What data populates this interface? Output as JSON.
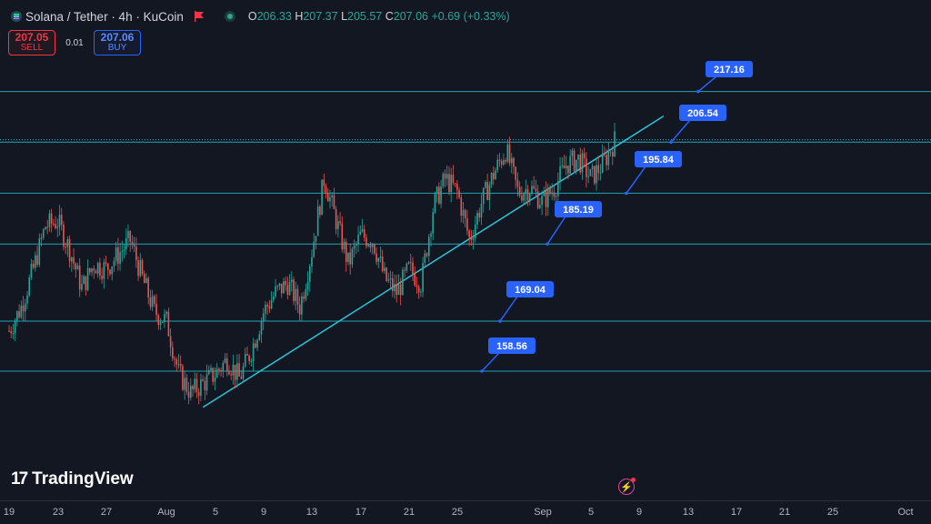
{
  "header": {
    "symbol": "Solana / Tether · 4h · KuCoin",
    "ohlc": {
      "o_label": "O",
      "o": "206.33",
      "h_label": "H",
      "h": "207.37",
      "l_label": "L",
      "l": "205.57",
      "c_label": "C",
      "c": "207.06",
      "change": "+0.69 (+0.33%)"
    }
  },
  "trade": {
    "sell_price": "207.05",
    "sell_label": "SELL",
    "spread": "0.01",
    "buy_price": "207.06",
    "buy_label": "BUY"
  },
  "branding": {
    "logo_mark": "17",
    "name": "TradingView"
  },
  "icons": {
    "symbol": "solana-icon",
    "flag": "flag-icon",
    "live": "market-open-icon",
    "alert": "bolt-icon"
  },
  "colors": {
    "background": "#131722",
    "up": "#26a69a",
    "down": "#ef5350",
    "levels": "#26c6da",
    "label_bg": "#2962ff"
  },
  "chart_data": {
    "type": "candlestick",
    "interval": "4h",
    "x_axis_labels": [
      "19",
      "23",
      "27",
      "Aug",
      "5",
      "9",
      "13",
      "17",
      "21",
      "25",
      "Sep",
      "5",
      "9",
      "13",
      "17",
      "21",
      "25",
      "Oct"
    ],
    "close_path": [
      [
        "2024-07-19",
        167
      ],
      [
        "2024-07-20",
        172
      ],
      [
        "2024-07-21",
        180
      ],
      [
        "2024-07-22",
        189
      ],
      [
        "2024-07-23",
        190
      ],
      [
        "2024-07-24",
        184
      ],
      [
        "2024-07-25",
        176
      ],
      [
        "2024-07-26",
        181
      ],
      [
        "2024-07-27",
        180
      ],
      [
        "2024-07-28",
        183
      ],
      [
        "2024-07-29",
        186
      ],
      [
        "2024-07-30",
        178
      ],
      [
        "2024-07-31",
        171
      ],
      [
        "2024-08-01",
        169
      ],
      [
        "2024-08-02",
        158
      ],
      [
        "2024-08-03",
        154
      ],
      [
        "2024-08-04",
        156
      ],
      [
        "2024-08-05",
        158
      ],
      [
        "2024-08-06",
        161
      ],
      [
        "2024-08-07",
        157
      ],
      [
        "2024-08-08",
        163
      ],
      [
        "2024-08-09",
        171
      ],
      [
        "2024-08-10",
        175
      ],
      [
        "2024-08-11",
        177
      ],
      [
        "2024-08-12",
        172
      ],
      [
        "2024-08-13",
        184
      ],
      [
        "2024-08-14",
        199
      ],
      [
        "2024-08-15",
        190
      ],
      [
        "2024-08-16",
        181
      ],
      [
        "2024-08-17",
        187
      ],
      [
        "2024-08-18",
        186
      ],
      [
        "2024-08-19",
        178
      ],
      [
        "2024-08-20",
        175
      ],
      [
        "2024-08-21",
        180
      ],
      [
        "2024-08-22",
        177
      ],
      [
        "2024-08-23",
        193
      ],
      [
        "2024-08-24",
        199
      ],
      [
        "2024-08-25",
        196
      ],
      [
        "2024-08-26",
        186
      ],
      [
        "2024-08-27",
        194
      ],
      [
        "2024-08-28",
        200
      ],
      [
        "2024-08-29",
        205
      ],
      [
        "2024-08-30",
        196
      ],
      [
        "2024-08-31",
        197
      ],
      [
        "2024-09-01",
        194
      ],
      [
        "2024-09-02",
        197
      ],
      [
        "2024-09-03",
        202
      ],
      [
        "2024-09-04",
        203
      ],
      [
        "2024-09-05",
        199
      ],
      [
        "2024-09-06",
        202
      ],
      [
        "2024-09-07",
        207
      ]
    ],
    "trendline": {
      "from": [
        "2024-08-04",
        151
      ],
      "to": [
        "2024-09-11",
        212
      ]
    },
    "levels": [
      217.16,
      206.54,
      195.84,
      185.19,
      169.04,
      158.56
    ],
    "current_price": 207.06,
    "grid": false
  }
}
